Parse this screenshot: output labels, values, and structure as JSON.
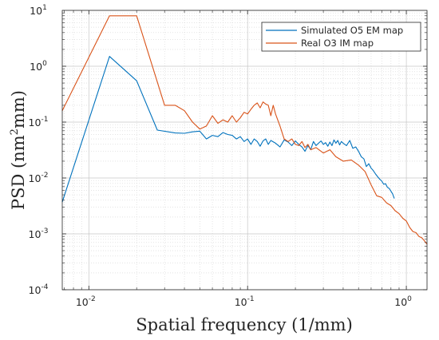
{
  "chart_data": {
    "type": "line",
    "title": "",
    "xlabel": "Spatial frequency (1/mm)",
    "ylabel_main": "PSD (nm",
    "ylabel_sup": "2",
    "ylabel_tail": "mm)",
    "xscale": "log",
    "yscale": "log",
    "xlim": [
      0.0068,
      1.35
    ],
    "ylim": [
      0.0001,
      10
    ],
    "grid": true,
    "minor_grid": true,
    "legend_position": "top-right",
    "x_ticks": [
      {
        "value": 0.01,
        "base": "10",
        "exp": "-2"
      },
      {
        "value": 0.1,
        "base": "10",
        "exp": "-1"
      },
      {
        "value": 1,
        "base": "10",
        "exp": "0"
      }
    ],
    "y_ticks": [
      {
        "value": 10,
        "base": "10",
        "exp": "1"
      },
      {
        "value": 1,
        "base": "10",
        "exp": "0"
      },
      {
        "value": 0.1,
        "base": "10",
        "exp": "-1"
      },
      {
        "value": 0.01,
        "base": "10",
        "exp": "-2"
      },
      {
        "value": 0.001,
        "base": "10",
        "exp": "-3"
      },
      {
        "value": 0.0001,
        "base": "10",
        "exp": "-4"
      }
    ],
    "series": [
      {
        "name": "Simulated O5 EM map",
        "color": "#0072BD",
        "x": [
          0.0068,
          0.0135,
          0.02,
          0.027,
          0.035,
          0.04,
          0.045,
          0.05,
          0.055,
          0.06,
          0.065,
          0.07,
          0.075,
          0.08,
          0.085,
          0.09,
          0.095,
          0.1,
          0.105,
          0.11,
          0.115,
          0.12,
          0.125,
          0.13,
          0.135,
          0.14,
          0.15,
          0.16,
          0.17,
          0.18,
          0.19,
          0.2,
          0.21,
          0.22,
          0.23,
          0.24,
          0.25,
          0.26,
          0.27,
          0.28,
          0.29,
          0.3,
          0.31,
          0.32,
          0.33,
          0.34,
          0.35,
          0.36,
          0.37,
          0.38,
          0.39,
          0.4,
          0.42,
          0.44,
          0.46,
          0.48,
          0.5,
          0.52,
          0.54,
          0.56,
          0.58,
          0.6,
          0.62,
          0.64,
          0.66,
          0.68,
          0.7,
          0.72,
          0.74,
          0.76,
          0.78,
          0.8,
          0.82,
          0.84
        ],
        "y": [
          0.0037,
          1.5,
          0.55,
          0.072,
          0.064,
          0.063,
          0.067,
          0.069,
          0.05,
          0.058,
          0.055,
          0.065,
          0.06,
          0.058,
          0.05,
          0.055,
          0.045,
          0.05,
          0.04,
          0.05,
          0.045,
          0.037,
          0.046,
          0.05,
          0.04,
          0.047,
          0.042,
          0.036,
          0.048,
          0.044,
          0.038,
          0.046,
          0.04,
          0.036,
          0.03,
          0.038,
          0.032,
          0.045,
          0.038,
          0.042,
          0.046,
          0.04,
          0.043,
          0.037,
          0.044,
          0.038,
          0.048,
          0.042,
          0.047,
          0.039,
          0.045,
          0.042,
          0.038,
          0.047,
          0.034,
          0.036,
          0.03,
          0.024,
          0.022,
          0.016,
          0.018,
          0.015,
          0.0135,
          0.0118,
          0.0105,
          0.0095,
          0.0088,
          0.0077,
          0.0079,
          0.0068,
          0.0065,
          0.0058,
          0.0052,
          0.0043
        ]
      },
      {
        "name": "Real O3 IM map",
        "color": "#D95319",
        "x": [
          0.0068,
          0.0135,
          0.02,
          0.03,
          0.035,
          0.04,
          0.045,
          0.05,
          0.055,
          0.06,
          0.065,
          0.07,
          0.075,
          0.08,
          0.085,
          0.09,
          0.095,
          0.1,
          0.105,
          0.11,
          0.115,
          0.12,
          0.125,
          0.13,
          0.135,
          0.14,
          0.145,
          0.15,
          0.16,
          0.17,
          0.18,
          0.19,
          0.2,
          0.21,
          0.22,
          0.23,
          0.24,
          0.25,
          0.27,
          0.3,
          0.33,
          0.36,
          0.4,
          0.45,
          0.5,
          0.55,
          0.6,
          0.65,
          0.7,
          0.75,
          0.8,
          0.85,
          0.9,
          0.95,
          1.0,
          1.05,
          1.1,
          1.15,
          1.2,
          1.25,
          1.3,
          1.35
        ],
        "y": [
          0.16,
          8.0,
          8.0,
          0.2,
          0.2,
          0.16,
          0.1,
          0.075,
          0.085,
          0.13,
          0.095,
          0.11,
          0.1,
          0.13,
          0.1,
          0.12,
          0.15,
          0.14,
          0.17,
          0.2,
          0.22,
          0.18,
          0.23,
          0.21,
          0.2,
          0.13,
          0.2,
          0.14,
          0.085,
          0.05,
          0.045,
          0.05,
          0.04,
          0.038,
          0.045,
          0.035,
          0.04,
          0.032,
          0.035,
          0.028,
          0.032,
          0.024,
          0.02,
          0.021,
          0.017,
          0.013,
          0.0075,
          0.0048,
          0.0045,
          0.0036,
          0.0032,
          0.0026,
          0.0023,
          0.0019,
          0.0017,
          0.0013,
          0.0011,
          0.00105,
          0.0009,
          0.00085,
          0.00075,
          0.00065
        ]
      }
    ]
  }
}
